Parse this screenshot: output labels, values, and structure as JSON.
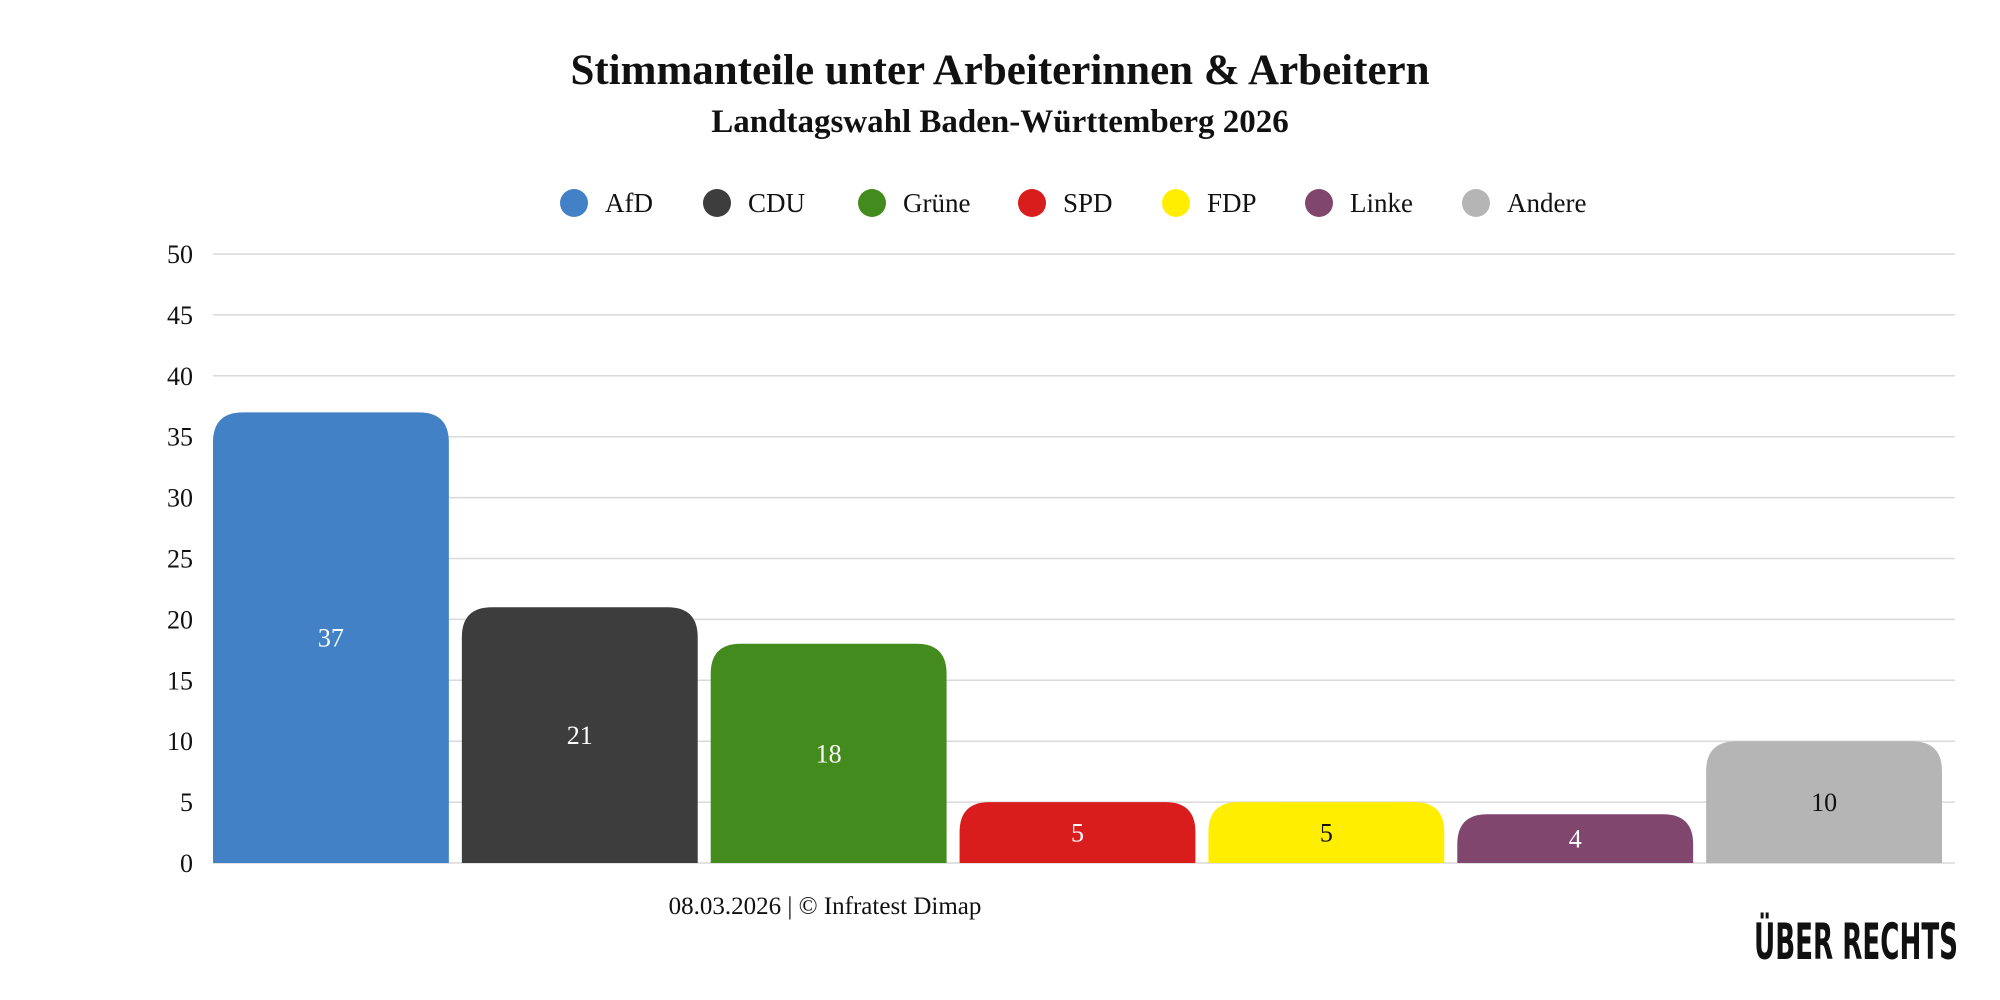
{
  "title": "Stimmanteile unter Arbeiterinnen & Arbeitern",
  "subtitle": "Landtagswahl Baden-Württemberg 2026",
  "footer": "08.03.2026 | © Infratest Dimap",
  "logo_text": "ÜBER RECHTS",
  "chart_data": {
    "type": "bar",
    "categories": [
      "AfD",
      "CDU",
      "Grüne",
      "SPD",
      "FDP",
      "Linke",
      "Andere"
    ],
    "values": [
      37,
      21,
      18,
      5,
      5,
      4,
      10
    ],
    "colors": [
      "#4281c5",
      "#3d3d3d",
      "#428b1c",
      "#d91c1c",
      "#ffee00",
      "#80466d",
      "#b5b5b5"
    ],
    "label_colors": [
      "#ffffff",
      "#ffffff",
      "#ffffff",
      "#ffffff",
      "#111111",
      "#ffffff",
      "#111111"
    ],
    "ylim": [
      0,
      50
    ],
    "yticks": [
      0,
      5,
      10,
      15,
      20,
      25,
      30,
      35,
      40,
      45,
      50
    ],
    "grid": true,
    "legend_position": "top",
    "xlabel": "",
    "ylabel": ""
  }
}
